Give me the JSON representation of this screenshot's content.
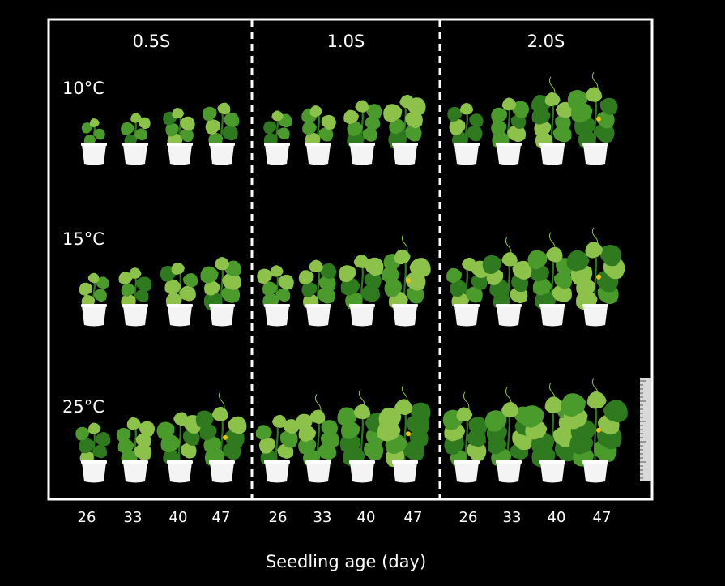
{
  "figure": {
    "columns": [
      {
        "label": "0.5S"
      },
      {
        "label": "1.0S"
      },
      {
        "label": "2.0S"
      }
    ],
    "rows": [
      {
        "label": "10°C"
      },
      {
        "label": "15°C"
      },
      {
        "label": "25°C"
      }
    ],
    "ages": [
      "26",
      "33",
      "40",
      "47"
    ],
    "x_axis_label": "Seedling age (day)",
    "colors": {
      "background": "#000000",
      "frame": "#ffffff",
      "pot": "#f4f4f4",
      "leaf_dark": "#2f7a1f",
      "leaf": "#4a9a2c",
      "leaf_light": "#8cc24a",
      "flower": "#e8c21a"
    }
  }
}
